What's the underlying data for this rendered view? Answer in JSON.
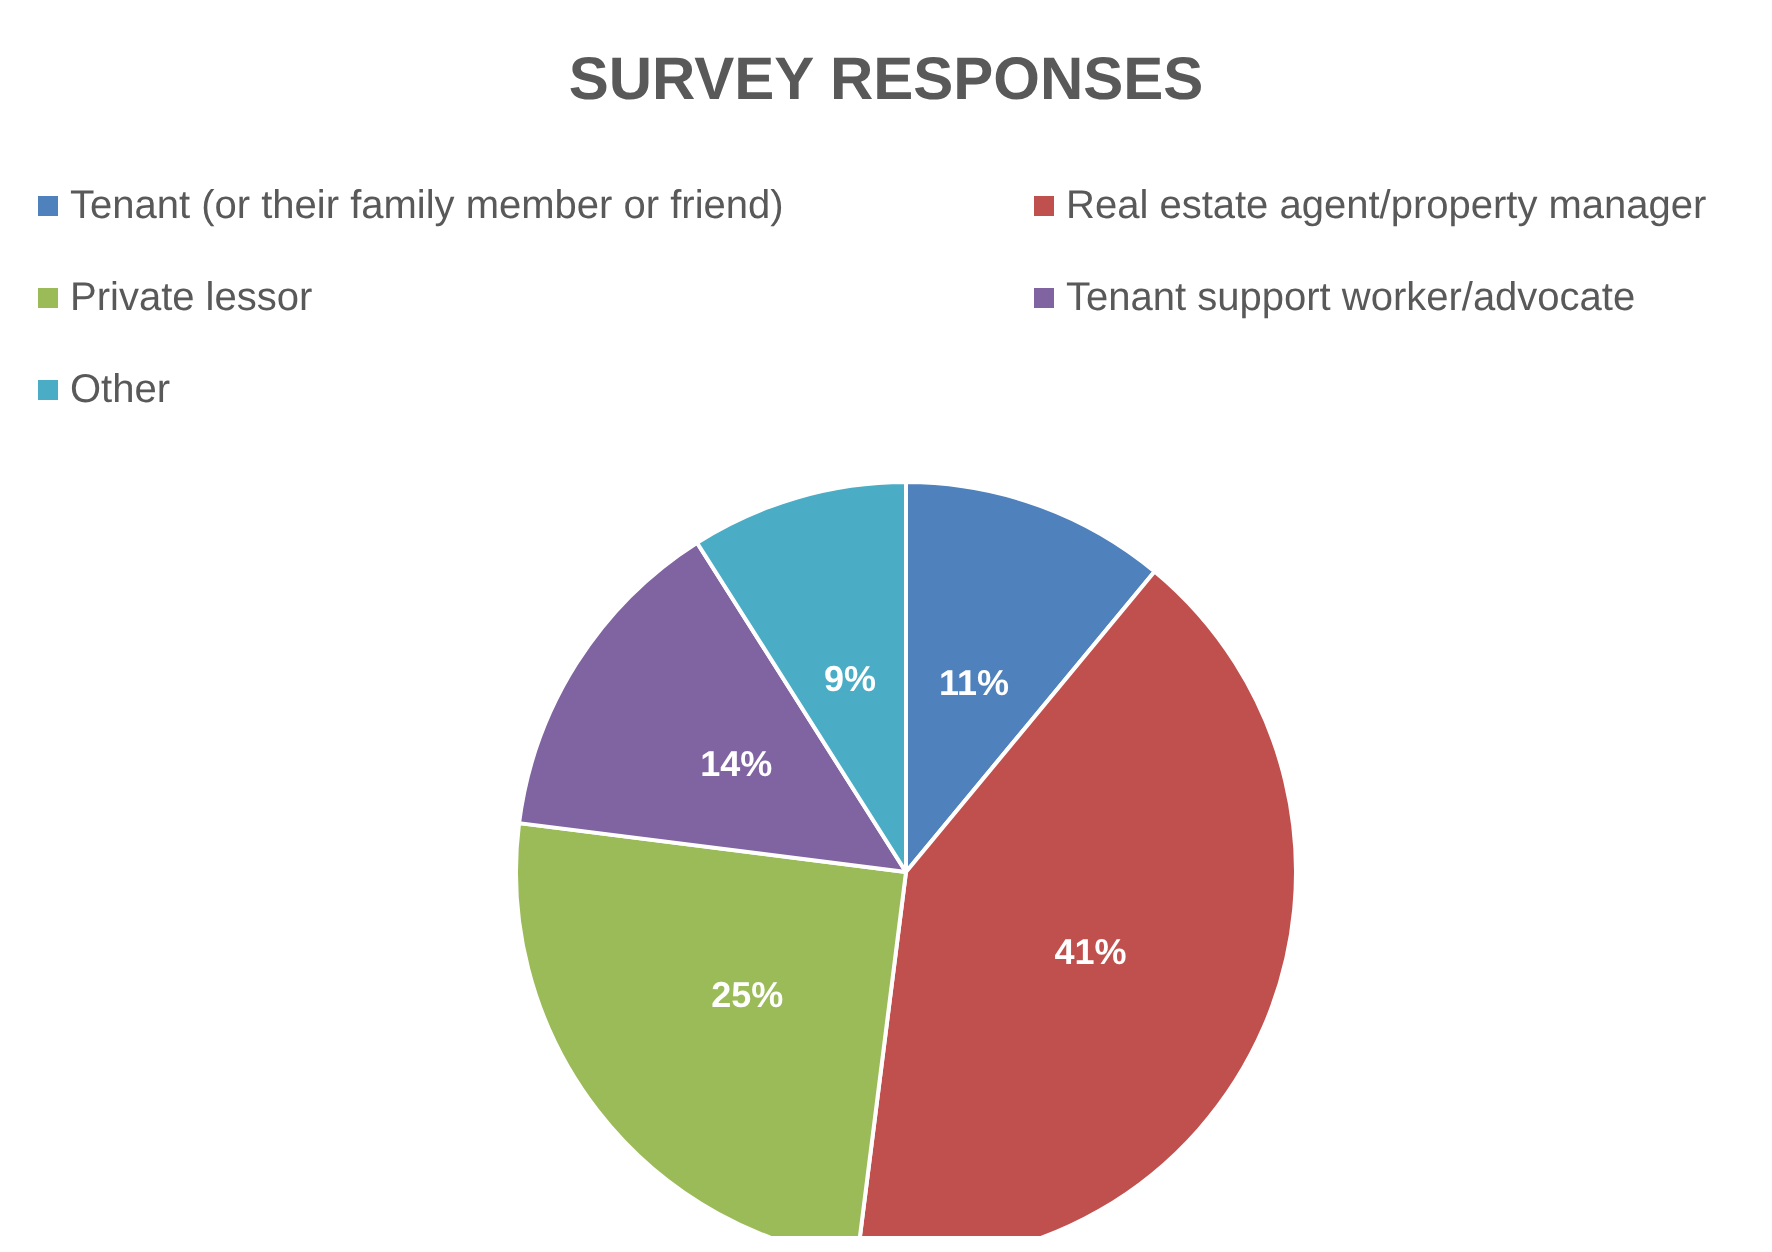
{
  "chart_data": {
    "type": "pie",
    "title": "SURVEY RESPONSES",
    "categories": [
      "Tenant (or their family member or friend)",
      "Real estate agent/property manager",
      "Private lessor",
      "Tenant support worker/advocate",
      "Other"
    ],
    "values": [
      11,
      41,
      25,
      14,
      9
    ],
    "value_labels": [
      "11%",
      "41%",
      "25%",
      "14%",
      "9%"
    ],
    "colors": [
      "#4f81bd",
      "#c0504d",
      "#9bbb59",
      "#8064a2",
      "#4bacc6"
    ],
    "legend": "top"
  }
}
